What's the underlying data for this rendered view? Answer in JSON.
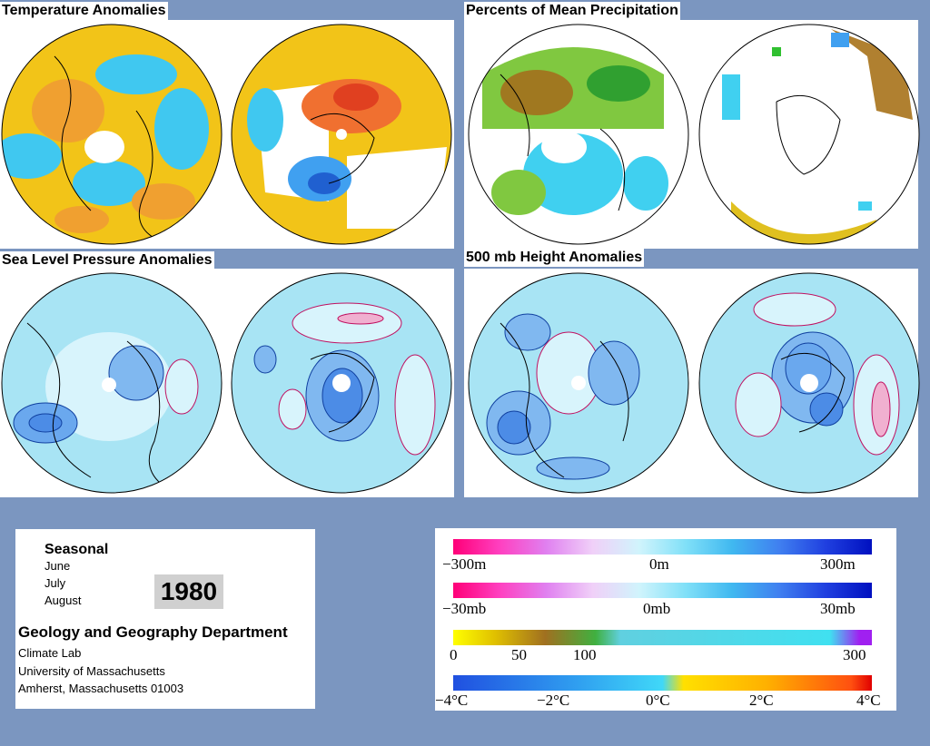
{
  "panels": {
    "temperature": {
      "title": "Temperature Anomalies"
    },
    "precipitation": {
      "title": "Percents of Mean Precipitation"
    },
    "slp": {
      "title": "Sea Level Pressure Anomalies"
    },
    "height500": {
      "title": "500 mb Height Anomalies"
    }
  },
  "info": {
    "period": "Seasonal",
    "months": [
      "June",
      "July",
      "August"
    ],
    "year": "1980",
    "department": "Geology and Geography Department",
    "lines": [
      "Climate Lab",
      "University of Massachusetts",
      "Amherst, Massachusetts 01003"
    ]
  },
  "legend": {
    "height_scale": {
      "labels": [
        "−300m",
        "0m",
        "300m"
      ]
    },
    "pressure_scale": {
      "labels": [
        "−30mb",
        "0mb",
        "30mb"
      ]
    },
    "precip_scale": {
      "labels": [
        "0",
        "50",
        "100",
        "300"
      ]
    },
    "temp_scale": {
      "labels": [
        "−4°C",
        "−2°C",
        "0°C",
        "2°C",
        "4°C"
      ]
    }
  },
  "colors": {
    "background": "#7b96c0",
    "warm_anomaly": "#f0b000",
    "cool_anomaly": "#40c8f0",
    "negative_contour": "#1040a0",
    "positive_contour": "#c01060"
  }
}
